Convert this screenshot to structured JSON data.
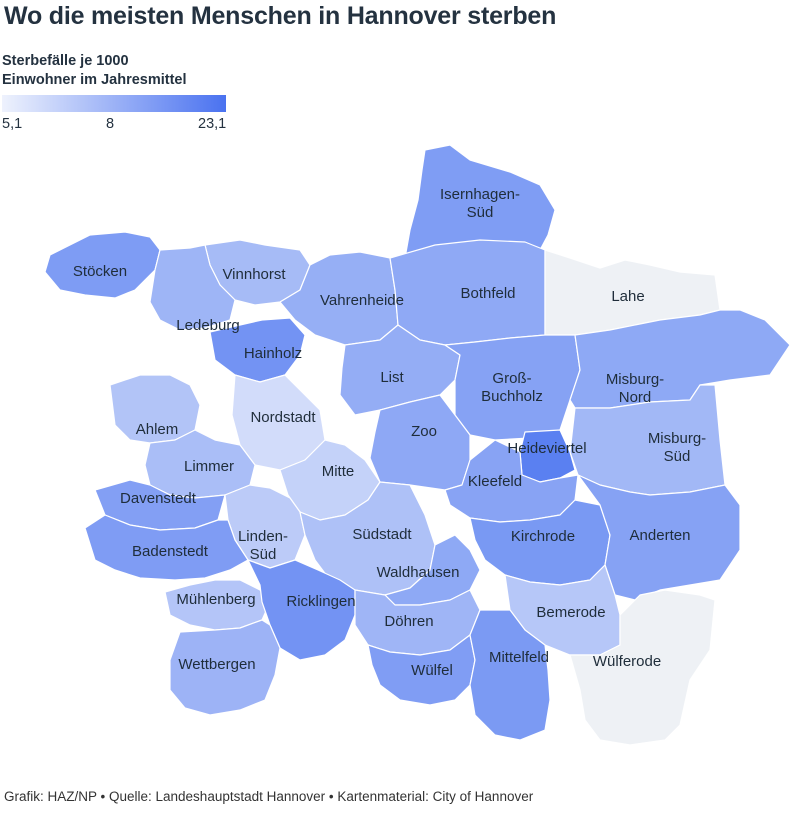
{
  "title": "Wo die meisten Menschen in Hannover sterben",
  "legend": {
    "title_line1": "Sterbefälle je 1000",
    "title_line2": "Einwohner im Jahresmittel",
    "min_label": "5,1",
    "mid_label": "8",
    "max_label": "23,1",
    "color_low": "#eef2fd",
    "color_high": "#4a72f0"
  },
  "no_data_color": "#eef1f5",
  "districts": [
    {
      "name": "Isernhagen-Süd",
      "lines": [
        "Isernhagen-",
        "Süd"
      ],
      "color": "#7f9df4"
    },
    {
      "name": "Stöcken",
      "lines": [
        "Stöcken"
      ],
      "color": "#7e9cf4"
    },
    {
      "name": "Vinnhorst",
      "lines": [
        "Vinnhorst"
      ],
      "color": "#a6bbf6"
    },
    {
      "name": "Vahrenheide",
      "lines": [
        "Vahrenheide"
      ],
      "color": "#96aff5"
    },
    {
      "name": "Bothfeld",
      "lines": [
        "Bothfeld"
      ],
      "color": "#8fa9f5"
    },
    {
      "name": "Lahe",
      "lines": [
        "Lahe"
      ],
      "color": "#eef1f5"
    },
    {
      "name": "Ledeburg",
      "lines": [
        "Ledeburg"
      ],
      "color": "#9eb5f6"
    },
    {
      "name": "Hainholz",
      "lines": [
        "Hainholz"
      ],
      "color": "#7393f3"
    },
    {
      "name": "List",
      "lines": [
        "List"
      ],
      "color": "#94adf5"
    },
    {
      "name": "Groß-Buchholz",
      "lines": [
        "Groß-",
        "Buchholz"
      ],
      "color": "#86a2f4"
    },
    {
      "name": "Misburg-Nord",
      "lines": [
        "Misburg-",
        "Nord"
      ],
      "color": "#8ea9f5"
    },
    {
      "name": "Ahlem",
      "lines": [
        "Ahlem"
      ],
      "color": "#b2c4f7"
    },
    {
      "name": "Nordstadt",
      "lines": [
        "Nordstadt"
      ],
      "color": "#d2dcfa"
    },
    {
      "name": "Zoo",
      "lines": [
        "Zoo"
      ],
      "color": "#8ea8f5"
    },
    {
      "name": "Heideviertel",
      "lines": [
        "Heideviertel"
      ],
      "color": "#5a80f1"
    },
    {
      "name": "Misburg-Süd",
      "lines": [
        "Misburg-",
        "Süd"
      ],
      "color": "#a2b8f6"
    },
    {
      "name": "Limmer",
      "lines": [
        "Limmer"
      ],
      "color": "#aabef7"
    },
    {
      "name": "Mitte",
      "lines": [
        "Mitte"
      ],
      "color": "#c4d2f9"
    },
    {
      "name": "Kleefeld",
      "lines": [
        "Kleefeld"
      ],
      "color": "#88a3f4"
    },
    {
      "name": "Davenstedt",
      "lines": [
        "Davenstedt"
      ],
      "color": "#839ff4"
    },
    {
      "name": "Linden-Süd",
      "lines": [
        "Linden-",
        "Süd"
      ],
      "color": "#bccbf8"
    },
    {
      "name": "Südstadt",
      "lines": [
        "Südstadt"
      ],
      "color": "#aec1f7"
    },
    {
      "name": "Kirchrode",
      "lines": [
        "Kirchrode"
      ],
      "color": "#7999f3"
    },
    {
      "name": "Anderten",
      "lines": [
        "Anderten"
      ],
      "color": "#86a2f4"
    },
    {
      "name": "Badenstedt",
      "lines": [
        "Badenstedt"
      ],
      "color": "#7f9cf4"
    },
    {
      "name": "Waldhausen",
      "lines": [
        "Waldhausen"
      ],
      "color": "#8ea9f5"
    },
    {
      "name": "Mühlenberg",
      "lines": [
        "Mühlenberg"
      ],
      "color": "#b4c5f8"
    },
    {
      "name": "Ricklingen",
      "lines": [
        "Ricklingen"
      ],
      "color": "#7393f3"
    },
    {
      "name": "Bemerode",
      "lines": [
        "Bemerode"
      ],
      "color": "#b6c7f8"
    },
    {
      "name": "Döhren",
      "lines": [
        "Döhren"
      ],
      "color": "#9fb5f6"
    },
    {
      "name": "Wettbergen",
      "lines": [
        "Wettbergen"
      ],
      "color": "#9db3f6"
    },
    {
      "name": "Wülfel",
      "lines": [
        "Wülfel"
      ],
      "color": "#809df4"
    },
    {
      "name": "Mittelfeld",
      "lines": [
        "Mittelfeld"
      ],
      "color": "#7b9af3"
    },
    {
      "name": "Wülferode",
      "lines": [
        "Wülferode"
      ],
      "color": "#eef1f5"
    }
  ],
  "footer": "Grafik: HAZ/NP • Quelle: Landeshauptstadt Hannover • Kartenmaterial: City of Hannover"
}
